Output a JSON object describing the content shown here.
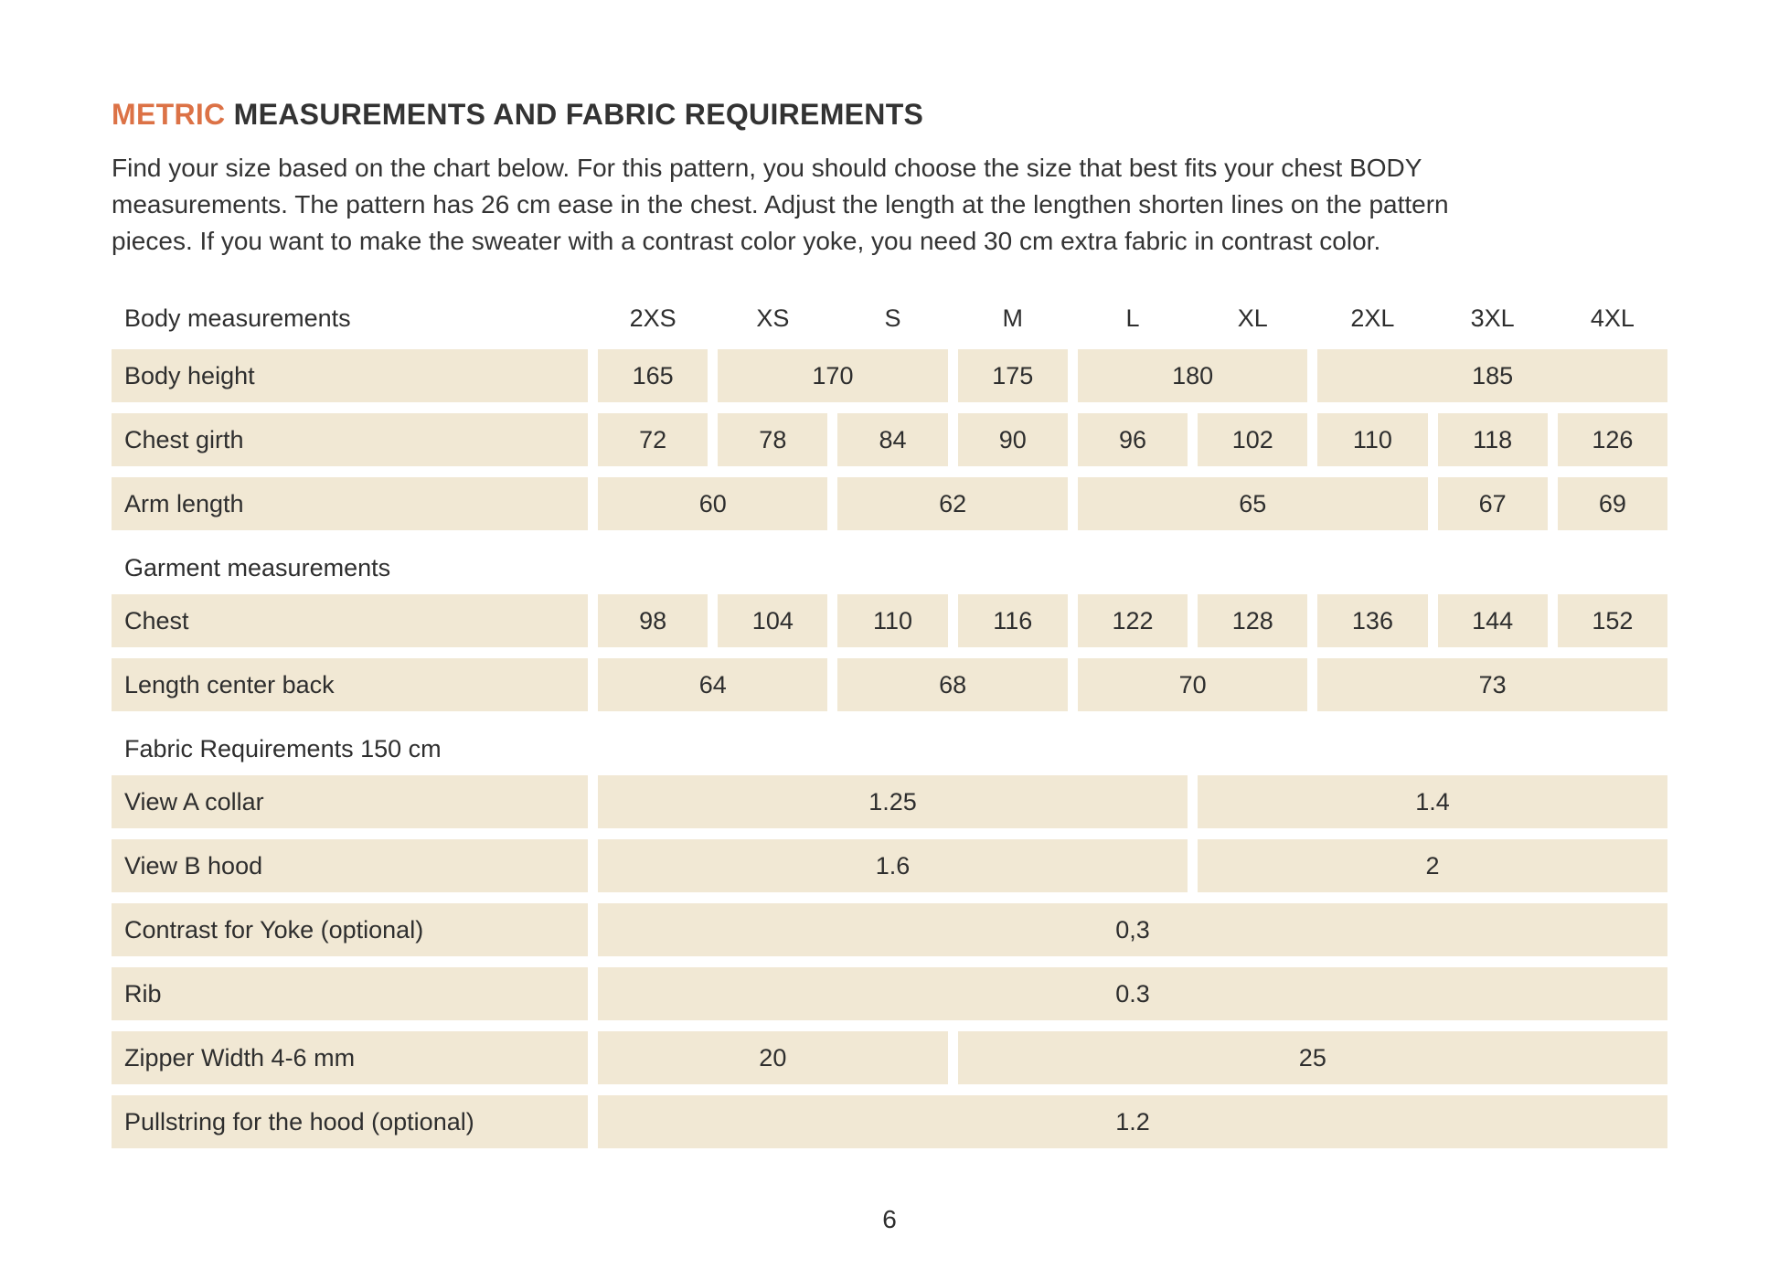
{
  "title": {
    "highlight": "METRIC",
    "rest": "MEASUREMENTS AND FABRIC REQUIREMENTS"
  },
  "intro_lines": [
    "Find your size based on the chart below. For this pattern, you should choose the size that best fits your chest BODY",
    "measurements. The pattern has 26 cm ease in the chest. Adjust the length at the lengthen shorten lines on the pattern",
    "pieces. If you want to make the sweater with a contrast color yoke, you need 30 cm extra fabric in contrast color."
  ],
  "colors": {
    "accent": "#dc7246",
    "cell_background": "#f1e8d4",
    "text": "#2e2e2e"
  },
  "table": {
    "header": {
      "label": "Body measurements",
      "sizes": [
        "2XS",
        "XS",
        "S",
        "M",
        "L",
        "XL",
        "2XL",
        "3XL",
        "4XL"
      ]
    },
    "rows": [
      {
        "type": "data",
        "label": "Body height",
        "cells": [
          {
            "v": "165",
            "span": 1
          },
          {
            "v": "170",
            "span": 2
          },
          {
            "v": "175",
            "span": 1
          },
          {
            "v": "180",
            "span": 2
          },
          {
            "v": "185",
            "span": 3
          }
        ]
      },
      {
        "type": "data",
        "label": "Chest girth",
        "cells": [
          {
            "v": "72",
            "span": 1
          },
          {
            "v": "78",
            "span": 1
          },
          {
            "v": "84",
            "span": 1
          },
          {
            "v": "90",
            "span": 1
          },
          {
            "v": "96",
            "span": 1
          },
          {
            "v": "102",
            "span": 1
          },
          {
            "v": "110",
            "span": 1
          },
          {
            "v": "118",
            "span": 1
          },
          {
            "v": "126",
            "span": 1
          }
        ]
      },
      {
        "type": "data",
        "label": "Arm length",
        "cells": [
          {
            "v": "60",
            "span": 2
          },
          {
            "v": "62",
            "span": 2
          },
          {
            "v": "65",
            "span": 3
          },
          {
            "v": "67",
            "span": 1
          },
          {
            "v": "69",
            "span": 1
          }
        ]
      },
      {
        "type": "section",
        "label": "Garment measurements"
      },
      {
        "type": "data",
        "label": "Chest",
        "cells": [
          {
            "v": "98",
            "span": 1
          },
          {
            "v": "104",
            "span": 1
          },
          {
            "v": "110",
            "span": 1
          },
          {
            "v": "116",
            "span": 1
          },
          {
            "v": "122",
            "span": 1
          },
          {
            "v": "128",
            "span": 1
          },
          {
            "v": "136",
            "span": 1
          },
          {
            "v": "144",
            "span": 1
          },
          {
            "v": "152",
            "span": 1
          }
        ]
      },
      {
        "type": "data",
        "label": "Length center back",
        "cells": [
          {
            "v": "64",
            "span": 2
          },
          {
            "v": "68",
            "span": 2
          },
          {
            "v": "70",
            "span": 2
          },
          {
            "v": "73",
            "span": 3
          }
        ]
      },
      {
        "type": "section",
        "label": "Fabric Requirements 150 cm"
      },
      {
        "type": "data",
        "label": "View A collar",
        "cells": [
          {
            "v": "1.25",
            "span": 5
          },
          {
            "v": "1.4",
            "span": 4
          }
        ]
      },
      {
        "type": "data",
        "label": "View B hood",
        "cells": [
          {
            "v": "1.6",
            "span": 5
          },
          {
            "v": "2",
            "span": 4
          }
        ]
      },
      {
        "type": "data",
        "label": "Contrast for Yoke (optional)",
        "cells": [
          {
            "v": "0,3",
            "span": 9
          }
        ]
      },
      {
        "type": "data",
        "label": "Rib",
        "cells": [
          {
            "v": "0.3",
            "span": 9
          }
        ]
      },
      {
        "type": "data",
        "label": "Zipper Width 4-6 mm",
        "cells": [
          {
            "v": "20",
            "span": 3
          },
          {
            "v": "25",
            "span": 6
          }
        ]
      },
      {
        "type": "data",
        "label": "Pullstring for the hood (optional)",
        "cells": [
          {
            "v": "1.2",
            "span": 9
          }
        ]
      }
    ]
  },
  "page_number": "6"
}
